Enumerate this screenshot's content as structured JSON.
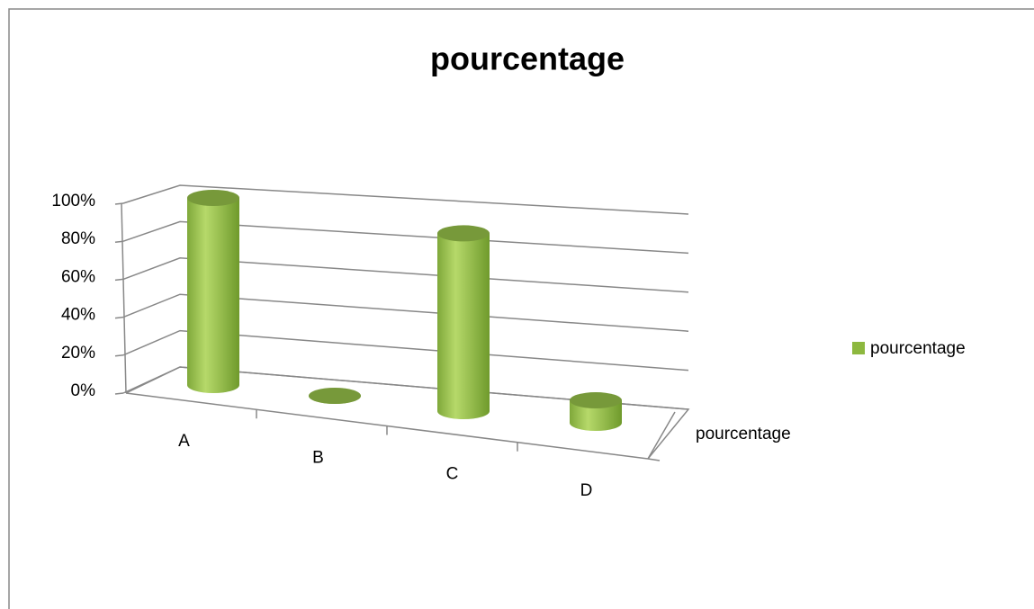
{
  "chart_data": {
    "type": "bar3d",
    "title": "pourcentage",
    "categories": [
      "A",
      "B",
      "C",
      "D"
    ],
    "series": [
      {
        "name": "pourcentage",
        "color": "#8db83f",
        "values": [
          100,
          0,
          95,
          12
        ]
      }
    ],
    "depth_label": "pourcentage",
    "ylim": [
      0,
      100
    ],
    "yticks": [
      {
        "value": 0,
        "label": "0%"
      },
      {
        "value": 20,
        "label": "20%"
      },
      {
        "value": 40,
        "label": "40%"
      },
      {
        "value": 60,
        "label": "60%"
      },
      {
        "value": 80,
        "label": "80%"
      },
      {
        "value": 100,
        "label": "100%"
      }
    ],
    "grid": true,
    "legend": "right"
  }
}
